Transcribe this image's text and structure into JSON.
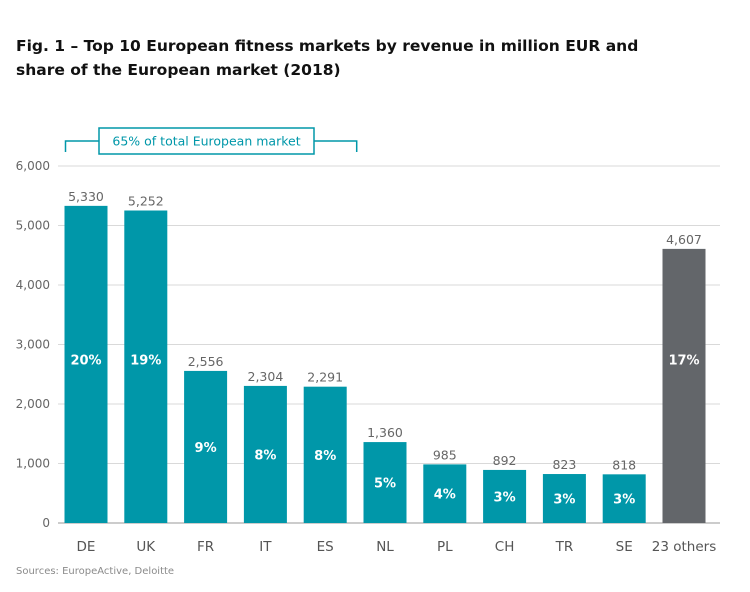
{
  "title_lines": [
    "Fig. 1 – Top 10 European fitness markets by revenue in million EUR and",
    "share of the European market (2018)"
  ],
  "source": "Sources: EuropeActive, Deloitte",
  "colors": {
    "teal": "#0097a9",
    "gray": "#63666a",
    "grid": "#d9d9d9",
    "axis": "#9a9a9a"
  },
  "chart_data": {
    "type": "bar",
    "title": "Fig. 1 – Top 10 European fitness markets by revenue in million EUR and share of the European market (2018)",
    "xlabel": "",
    "ylabel": "",
    "ylim": [
      0,
      6000
    ],
    "yticks": [
      "0",
      "1,000",
      "2,000",
      "3,000",
      "4,000",
      "5,000",
      "6,000"
    ],
    "ytick_values": [
      0,
      1000,
      2000,
      3000,
      4000,
      5000,
      6000
    ],
    "grid": true,
    "categories": [
      "DE",
      "UK",
      "FR",
      "IT",
      "ES",
      "NL",
      "PL",
      "CH",
      "TR",
      "SE",
      "23 others"
    ],
    "values": [
      5330,
      5252,
      2556,
      2304,
      2291,
      1360,
      985,
      892,
      823,
      818,
      4607
    ],
    "value_labels": [
      "5,330",
      "5,252",
      "2,556",
      "2,304",
      "2,291",
      "1,360",
      "985",
      "892",
      "823",
      "818",
      "4,607"
    ],
    "share_labels": [
      "20%",
      "19%",
      "9%",
      "8%",
      "8%",
      "5%",
      "4%",
      "3%",
      "3%",
      "3%",
      "17%"
    ],
    "bar_colors": [
      "teal",
      "teal",
      "teal",
      "teal",
      "teal",
      "teal",
      "teal",
      "teal",
      "teal",
      "teal",
      "gray"
    ],
    "annotation": {
      "text": "65% of total European market",
      "span": [
        "DE",
        "ES"
      ]
    }
  }
}
